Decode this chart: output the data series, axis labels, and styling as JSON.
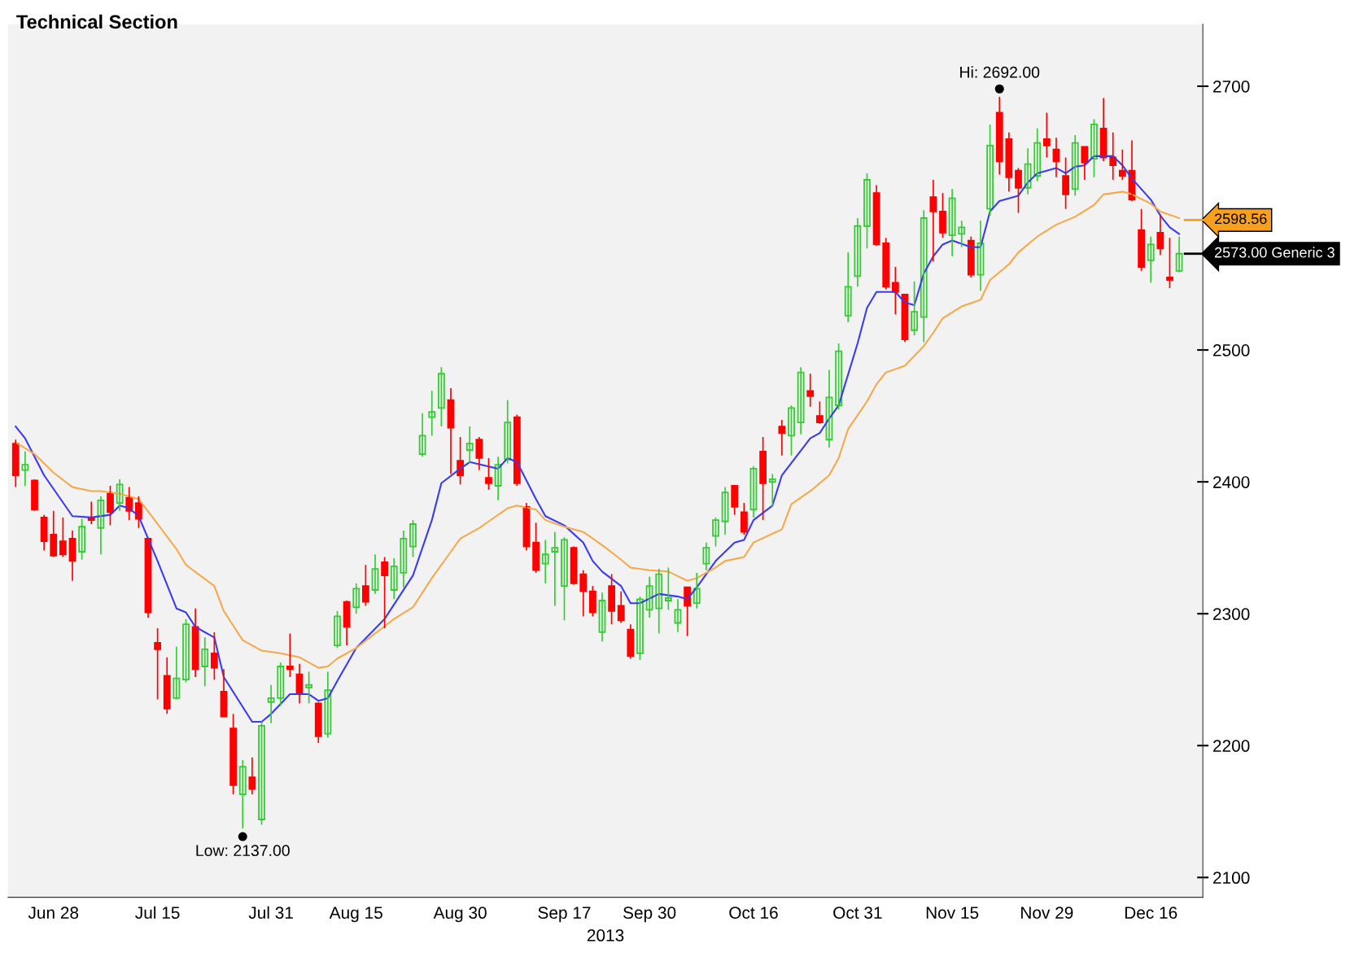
{
  "chart_data": {
    "type": "candlestick",
    "title": "Technical Section",
    "xlabel": "2013",
    "categories": [
      null,
      null,
      null,
      null,
      "Jun 28",
      null,
      null,
      null,
      null,
      null,
      null,
      null,
      null,
      null,
      null,
      "Jul 15",
      null,
      null,
      null,
      null,
      null,
      null,
      null,
      null,
      null,
      null,
      null,
      "Jul 31",
      null,
      null,
      null,
      null,
      null,
      null,
      null,
      null,
      "Aug 15",
      null,
      null,
      null,
      null,
      null,
      null,
      null,
      null,
      null,
      null,
      "Aug 30",
      null,
      null,
      null,
      null,
      null,
      null,
      null,
      null,
      null,
      null,
      "Sep 17",
      null,
      null,
      null,
      null,
      null,
      null,
      null,
      null,
      "Sep 30",
      null,
      null,
      null,
      null,
      null,
      null,
      null,
      null,
      null,
      null,
      "Oct 16",
      null,
      null,
      null,
      null,
      null,
      null,
      null,
      null,
      null,
      null,
      "Oct 31",
      null,
      null,
      null,
      null,
      null,
      null,
      null,
      null,
      null,
      "Nov 15",
      null,
      null,
      null,
      null,
      null,
      null,
      null,
      null,
      null,
      "Nov 29",
      null,
      null,
      null,
      null,
      null,
      null,
      null,
      null,
      null,
      null,
      "Dec 16",
      null,
      null,
      null
    ],
    "ohlc": [
      [
        2429,
        2432,
        2396,
        2405
      ],
      [
        2409,
        2423,
        2397,
        2413
      ],
      [
        2401,
        2402,
        2378,
        2379
      ],
      [
        2373,
        2375,
        2348,
        2355
      ],
      [
        2360,
        2378,
        2343,
        2344
      ],
      [
        2355,
        2373,
        2343,
        2345
      ],
      [
        2357,
        2363,
        2325,
        2340
      ],
      [
        2347,
        2372,
        2341,
        2366
      ],
      [
        2373,
        2385,
        2368,
        2371
      ],
      [
        2365,
        2389,
        2345,
        2386
      ],
      [
        2391,
        2397,
        2367,
        2377
      ],
      [
        2384,
        2402,
        2378,
        2398
      ],
      [
        2388,
        2396,
        2371,
        2378
      ],
      [
        2384,
        2389,
        2365,
        2372
      ],
      [
        2357,
        2357,
        2297,
        2301
      ],
      [
        2278,
        2289,
        2235,
        2273
      ],
      [
        2253,
        2267,
        2224,
        2228
      ],
      [
        2236,
        2275,
        2235,
        2251
      ],
      [
        2250,
        2296,
        2248,
        2292
      ],
      [
        2290,
        2304,
        2252,
        2258
      ],
      [
        2260,
        2282,
        2245,
        2273
      ],
      [
        2270,
        2286,
        2250,
        2259
      ],
      [
        2241,
        2258,
        2222,
        2222
      ],
      [
        2213,
        2224,
        2163,
        2170
      ],
      [
        2163,
        2189,
        2137,
        2184
      ],
      [
        2176,
        2191,
        2163,
        2167
      ],
      [
        2144,
        2218,
        2140,
        2215
      ],
      [
        2233,
        2246,
        2217,
        2236
      ],
      [
        2236,
        2263,
        2230,
        2260
      ],
      [
        2260,
        2285,
        2252,
        2258
      ],
      [
        2254,
        2262,
        2232,
        2240
      ],
      [
        2244,
        2256,
        2232,
        2246
      ],
      [
        2232,
        2233,
        2202,
        2207
      ],
      [
        2209,
        2256,
        2206,
        2242
      ],
      [
        2276,
        2302,
        2274,
        2298
      ],
      [
        2309,
        2310,
        2276,
        2290
      ],
      [
        2305,
        2323,
        2300,
        2319
      ],
      [
        2321,
        2337,
        2306,
        2309
      ],
      [
        2318,
        2345,
        2315,
        2334
      ],
      [
        2339,
        2343,
        2289,
        2329
      ],
      [
        2318,
        2342,
        2311,
        2336
      ],
      [
        2331,
        2363,
        2320,
        2357
      ],
      [
        2351,
        2371,
        2343,
        2368
      ],
      [
        2421,
        2452,
        2419,
        2435
      ],
      [
        2449,
        2469,
        2435,
        2453
      ],
      [
        2456,
        2487,
        2442,
        2482
      ],
      [
        2462,
        2471,
        2406,
        2441
      ],
      [
        2416,
        2434,
        2398,
        2405
      ],
      [
        2424,
        2442,
        2414,
        2429
      ],
      [
        2432,
        2434,
        2409,
        2418
      ],
      [
        2403,
        2418,
        2394,
        2399
      ],
      [
        2397,
        2419,
        2386,
        2413
      ],
      [
        2417,
        2462,
        2414,
        2445
      ],
      [
        2449,
        2451,
        2397,
        2399
      ],
      [
        2381,
        2384,
        2348,
        2351
      ],
      [
        2354,
        2369,
        2331,
        2333
      ],
      [
        2338,
        2356,
        2323,
        2345
      ],
      [
        2347,
        2362,
        2306,
        2350
      ],
      [
        2321,
        2358,
        2295,
        2356
      ],
      [
        2350,
        2351,
        2322,
        2323
      ],
      [
        2330,
        2333,
        2298,
        2317
      ],
      [
        2317,
        2321,
        2298,
        2301
      ],
      [
        2286,
        2316,
        2279,
        2310
      ],
      [
        2321,
        2330,
        2292,
        2302
      ],
      [
        2306,
        2317,
        2293,
        2295
      ],
      [
        2288,
        2292,
        2266,
        2268
      ],
      [
        2270,
        2313,
        2265,
        2311
      ],
      [
        2303,
        2328,
        2297,
        2321
      ],
      [
        2304,
        2334,
        2285,
        2330
      ],
      [
        2310,
        2335,
        2303,
        2312
      ],
      [
        2293,
        2311,
        2286,
        2303
      ],
      [
        2320,
        2320,
        2283,
        2306
      ],
      [
        2308,
        2331,
        2304,
        2319
      ],
      [
        2338,
        2354,
        2333,
        2350
      ],
      [
        2359,
        2373,
        2351,
        2371
      ],
      [
        2370,
        2396,
        2360,
        2392
      ],
      [
        2397,
        2397,
        2375,
        2381
      ],
      [
        2377,
        2384,
        2360,
        2362
      ],
      [
        2379,
        2412,
        2373,
        2410
      ],
      [
        2423,
        2434,
        2371,
        2399
      ],
      [
        2400,
        2406,
        2381,
        2402
      ],
      [
        2442,
        2447,
        2420,
        2437
      ],
      [
        2435,
        2458,
        2420,
        2456
      ],
      [
        2445,
        2487,
        2436,
        2483
      ],
      [
        2469,
        2482,
        2457,
        2465
      ],
      [
        2450,
        2461,
        2444,
        2445
      ],
      [
        2432,
        2485,
        2426,
        2464
      ],
      [
        2458,
        2505,
        2455,
        2499
      ],
      [
        2526,
        2574,
        2521,
        2548
      ],
      [
        2556,
        2600,
        2548,
        2594
      ],
      [
        2594,
        2634,
        2577,
        2629
      ],
      [
        2619,
        2625,
        2579,
        2580
      ],
      [
        2581,
        2585,
        2546,
        2548
      ],
      [
        2551,
        2563,
        2527,
        2544
      ],
      [
        2542,
        2542,
        2506,
        2508
      ],
      [
        2515,
        2552,
        2511,
        2529
      ],
      [
        2525,
        2606,
        2506,
        2600
      ],
      [
        2616,
        2629,
        2567,
        2605
      ],
      [
        2605,
        2619,
        2585,
        2589
      ],
      [
        2587,
        2622,
        2571,
        2615
      ],
      [
        2588,
        2598,
        2578,
        2593
      ],
      [
        2583,
        2586,
        2555,
        2557
      ],
      [
        2557,
        2598,
        2545,
        2581
      ],
      [
        2607,
        2671,
        2602,
        2655
      ],
      [
        2680,
        2692,
        2633,
        2643
      ],
      [
        2660,
        2665,
        2620,
        2631
      ],
      [
        2636,
        2638,
        2604,
        2623
      ],
      [
        2623,
        2653,
        2618,
        2641
      ],
      [
        2632,
        2668,
        2628,
        2657
      ],
      [
        2660,
        2680,
        2646,
        2655
      ],
      [
        2652,
        2661,
        2631,
        2643
      ],
      [
        2632,
        2646,
        2607,
        2618
      ],
      [
        2622,
        2663,
        2617,
        2657
      ],
      [
        2654,
        2654,
        2629,
        2642
      ],
      [
        2645,
        2675,
        2631,
        2671
      ],
      [
        2668,
        2691,
        2643,
        2646
      ],
      [
        2646,
        2665,
        2629,
        2640
      ],
      [
        2636,
        2652,
        2629,
        2632
      ],
      [
        2636,
        2659,
        2613,
        2614
      ],
      [
        2591,
        2607,
        2560,
        2563
      ],
      [
        2568,
        2586,
        2551,
        2580
      ],
      [
        2589,
        2603,
        2572,
        2577
      ],
      [
        2555,
        2585,
        2547,
        2553
      ],
      [
        2560,
        2586,
        2559,
        2573
      ]
    ],
    "series": [
      {
        "type": "line",
        "color": "#3a3af0",
        "values": [
          2442,
          2433,
          null,
          2405,
          null,
          null,
          2374,
          null,
          2373,
          null,
          2375,
          2382,
          2380,
          2374,
          null,
          2340,
          null,
          2304,
          2301,
          2290,
          null,
          2282,
          2252,
          null,
          null,
          2218,
          2218,
          2224,
          null,
          2239,
          null,
          2239,
          2234,
          2236,
          2249,
          null,
          2274,
          null,
          null,
          2296,
          null,
          null,
          2329,
          null,
          2371,
          2399,
          null,
          2410,
          2415,
          null,
          null,
          2410,
          2418,
          2415,
          null,
          2387,
          2374,
          null,
          2367,
          null,
          2354,
          2340,
          2332,
          null,
          2321,
          2308,
          2308,
          null,
          2315,
          null,
          2313,
          2311,
          2320,
          null,
          2340,
          null,
          2354,
          2356,
          2371,
          null,
          2382,
          2405,
          null,
          null,
          2433,
          2437,
          2448,
          2458,
          null,
          2505,
          2532,
          2544,
          null,
          2544,
          2536,
          2534,
          2558,
          2571,
          2580,
          2583,
          null,
          2578,
          2578,
          2605,
          2613,
          null,
          2617,
          2627,
          2634,
          null,
          2638,
          2634,
          2639,
          2640,
          2647,
          null,
          2647,
          2640,
          2630,
          null,
          2614,
          2602,
          2593,
          2588
        ]
      },
      {
        "type": "line",
        "color": "#f5a94a",
        "values": [
          2430,
          null,
          2421,
          null,
          2407,
          null,
          2396,
          null,
          2393,
          2393,
          null,
          2391,
          null,
          2387,
          null,
          2368,
          null,
          2349,
          2337,
          null,
          null,
          2321,
          2302,
          null,
          2280,
          null,
          2272,
          null,
          2270,
          null,
          2267,
          null,
          2259,
          2260,
          2266,
          null,
          2274,
          null,
          2285,
          null,
          2296,
          null,
          2305,
          null,
          2327,
          null,
          2347,
          2357,
          null,
          2365,
          2370,
          null,
          2380,
          2382,
          null,
          2379,
          2371,
          null,
          2366,
          null,
          2362,
          null,
          2352,
          null,
          2341,
          2335,
          null,
          2333,
          null,
          2332,
          null,
          2325,
          2327,
          null,
          2335,
          2340,
          null,
          2343,
          2354,
          null,
          null,
          2364,
          2383,
          null,
          2393,
          null,
          2405,
          2418,
          2440,
          null,
          2461,
          2474,
          2483,
          null,
          2488,
          null,
          2503,
          2513,
          2524,
          null,
          2533,
          null,
          2538,
          2553,
          null,
          2565,
          2574,
          null,
          2586,
          null,
          2595,
          null,
          2601,
          null,
          2610,
          2618,
          null,
          2620,
          2618,
          null,
          2611,
          2605,
          null,
          2600
        ]
      }
    ],
    "annotations": [
      {
        "text": "Hi: 2692.00",
        "y": 2692
      },
      {
        "text": "Low: 2137.00",
        "y": 2137
      }
    ],
    "ref_lines": [
      {
        "axis": "y",
        "value": 2598.56,
        "label": "2598.56",
        "color": "#f7a01e"
      },
      {
        "axis": "y",
        "value": 2573,
        "label": "2573.00 Generic 3",
        "color": "#000000"
      }
    ],
    "ylim": [
      2085,
      2747
    ],
    "yticks": [
      2100,
      2200,
      2300,
      2400,
      2500,
      2700
    ],
    "grid": false,
    "legend": false
  }
}
